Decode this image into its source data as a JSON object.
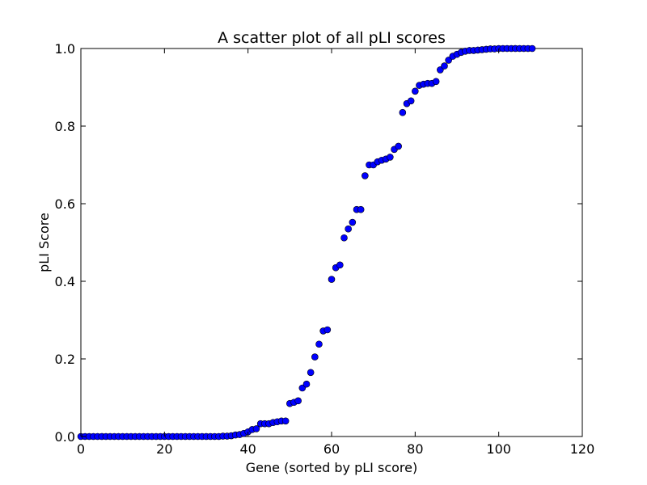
{
  "chart_data": {
    "type": "scatter",
    "title": "A scatter plot of all pLI scores",
    "xlabel": "Gene (sorted by pLI score)",
    "ylabel": "pLI Score",
    "xlim": [
      0,
      120
    ],
    "ylim": [
      0.0,
      1.0
    ],
    "xticks": [
      "0",
      "20",
      "40",
      "60",
      "80",
      "100",
      "120"
    ],
    "yticks": [
      "0.0",
      "0.2",
      "0.4",
      "0.6",
      "0.8",
      "1.0"
    ],
    "grid": false,
    "legend": "none",
    "marker_color": "#0000ff",
    "series": [
      {
        "x": [
          0,
          1,
          2,
          3,
          4,
          5,
          6,
          7,
          8,
          9,
          10,
          11,
          12,
          13,
          14,
          15,
          16,
          17,
          18,
          19,
          20,
          21,
          22,
          23,
          24,
          25,
          26,
          27,
          28,
          29,
          30,
          31,
          32,
          33,
          34,
          35,
          36,
          37,
          38,
          39,
          40,
          41,
          42,
          43,
          44,
          45,
          46,
          47,
          48,
          49,
          50,
          51,
          52,
          53,
          54,
          55,
          56,
          57,
          58,
          59,
          60,
          61,
          62,
          63,
          64,
          65,
          66,
          67,
          68,
          69,
          70,
          71,
          72,
          73,
          74,
          75,
          76,
          77,
          78,
          79,
          80,
          81,
          82,
          83,
          84,
          85,
          86,
          87,
          88,
          89,
          90,
          91,
          92,
          93,
          94,
          95,
          96,
          97,
          98,
          99,
          100,
          101,
          102,
          103,
          104,
          105,
          106,
          107,
          108
        ],
        "y": [
          0,
          0,
          0,
          0,
          0,
          0,
          0,
          0,
          0,
          0,
          0,
          0,
          0,
          0,
          0,
          0,
          0,
          0,
          0,
          0,
          0,
          0,
          0,
          0,
          0,
          0,
          0,
          0,
          0,
          0,
          0,
          0,
          0,
          0,
          0.001,
          0.001,
          0.002,
          0.004,
          0.005,
          0.008,
          0.012,
          0.018,
          0.02,
          0.033,
          0.033,
          0.033,
          0.036,
          0.038,
          0.04,
          0.04,
          0.085,
          0.088,
          0.092,
          0.125,
          0.135,
          0.165,
          0.205,
          0.238,
          0.272,
          0.275,
          0.405,
          0.435,
          0.442,
          0.512,
          0.535,
          0.552,
          0.585,
          0.585,
          0.672,
          0.7,
          0.7,
          0.708,
          0.712,
          0.715,
          0.72,
          0.74,
          0.748,
          0.835,
          0.858,
          0.865,
          0.89,
          0.905,
          0.908,
          0.91,
          0.91,
          0.915,
          0.945,
          0.955,
          0.97,
          0.98,
          0.985,
          0.99,
          0.993,
          0.995,
          0.995,
          0.996,
          0.997,
          0.998,
          0.999,
          0.999,
          1,
          1,
          1,
          1,
          1,
          1,
          1,
          1,
          1
        ]
      }
    ]
  }
}
